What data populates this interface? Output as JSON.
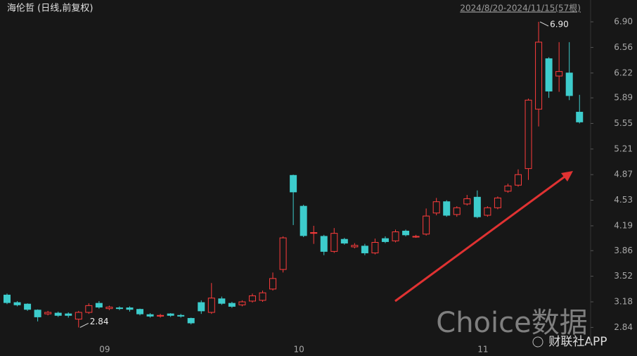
{
  "chart_data": {
    "type": "candlestick",
    "title": "海伦哲 (日线,前复权)",
    "subtitle": "2024/8/20-2024/11/15(57根)",
    "watermarks": [
      "Choice数据",
      "财联社APP"
    ],
    "extreme_labels": {
      "high": "6.90",
      "low": "2.84"
    },
    "up_color": "#ff3c3c",
    "down_color": "#3dcccc",
    "categories": [
      null,
      null,
      null,
      null,
      null,
      null,
      null,
      null,
      null,
      "09",
      null,
      null,
      null,
      null,
      null,
      null,
      null,
      null,
      null,
      null,
      null,
      null,
      null,
      null,
      null,
      null,
      null,
      null,
      "10",
      null,
      null,
      null,
      null,
      null,
      null,
      null,
      null,
      null,
      null,
      null,
      null,
      null,
      null,
      null,
      null,
      null,
      "11",
      null,
      null,
      null,
      null,
      null,
      null,
      null,
      null,
      null,
      null
    ],
    "open": [
      3.27,
      3.17,
      3.15,
      3.07,
      3.02,
      3.03,
      3.02,
      2.95,
      3.04,
      3.16,
      3.09,
      3.1,
      3.1,
      3.08,
      3.01,
      2.99,
      3.02,
      3.0,
      2.96,
      3.17,
      3.04,
      3.22,
      3.16,
      3.14,
      3.19,
      3.2,
      3.35,
      3.61,
      4.86,
      4.45,
      4.09,
      4.05,
      3.85,
      4.01,
      3.91,
      3.92,
      3.83,
      4.02,
      3.99,
      4.12,
      4.04,
      4.08,
      4.36,
      4.51,
      4.34,
      4.48,
      4.57,
      4.33,
      4.43,
      4.65,
      4.73,
      4.95,
      5.74,
      6.41,
      6.18,
      6.22,
      5.7
    ],
    "high": [
      3.29,
      3.19,
      3.16,
      3.08,
      3.06,
      3.05,
      3.04,
      3.06,
      3.16,
      3.19,
      3.13,
      3.12,
      3.12,
      3.09,
      3.03,
      3.02,
      3.03,
      3.02,
      2.97,
      3.2,
      3.43,
      3.25,
      3.18,
      3.2,
      3.29,
      3.33,
      3.57,
      4.05,
      4.87,
      4.47,
      4.19,
      4.07,
      4.16,
      4.03,
      3.96,
      3.95,
      4.02,
      4.05,
      4.14,
      4.14,
      4.07,
      4.42,
      4.56,
      4.53,
      4.45,
      4.6,
      4.66,
      4.45,
      4.58,
      4.75,
      4.94,
      5.88,
      6.9,
      6.43,
      6.63,
      6.63,
      5.93
    ],
    "low": [
      3.15,
      3.12,
      3.06,
      2.92,
      3.0,
      2.98,
      2.97,
      2.84,
      3.02,
      3.09,
      3.07,
      3.07,
      3.05,
      3.0,
      2.97,
      2.97,
      2.98,
      2.97,
      2.88,
      3.02,
      3.02,
      3.14,
      3.1,
      3.12,
      3.17,
      3.18,
      3.33,
      3.57,
      4.2,
      4.04,
      3.95,
      3.8,
      3.83,
      3.94,
      3.89,
      3.8,
      3.81,
      3.96,
      3.97,
      4.05,
      4.03,
      4.06,
      4.33,
      4.31,
      4.31,
      4.46,
      4.29,
      4.31,
      4.41,
      4.63,
      4.71,
      4.8,
      5.51,
      5.89,
      5.97,
      5.86,
      5.55
    ],
    "close": [
      3.17,
      3.14,
      3.08,
      2.98,
      3.04,
      3.0,
      3.0,
      3.04,
      3.13,
      3.11,
      3.11,
      3.09,
      3.08,
      3.02,
      2.99,
      3.0,
      3.0,
      2.99,
      2.9,
      3.06,
      3.23,
      3.16,
      3.12,
      3.18,
      3.26,
      3.3,
      3.49,
      4.03,
      4.64,
      4.06,
      4.1,
      3.85,
      4.09,
      3.96,
      3.93,
      3.83,
      3.97,
      3.98,
      4.11,
      4.07,
      4.05,
      4.32,
      4.51,
      4.33,
      4.43,
      4.55,
      4.31,
      4.43,
      4.56,
      4.72,
      4.87,
      5.86,
      6.63,
      5.98,
      6.24,
      5.92,
      5.57
    ],
    "ylim": [
      2.61,
      7.19
    ],
    "yticks": [
      2.84,
      3.18,
      3.52,
      3.86,
      4.19,
      4.53,
      4.87,
      5.21,
      5.55,
      5.89,
      6.22,
      6.56,
      {
        "value": 6.9,
        "label": "6.90"
      }
    ]
  }
}
